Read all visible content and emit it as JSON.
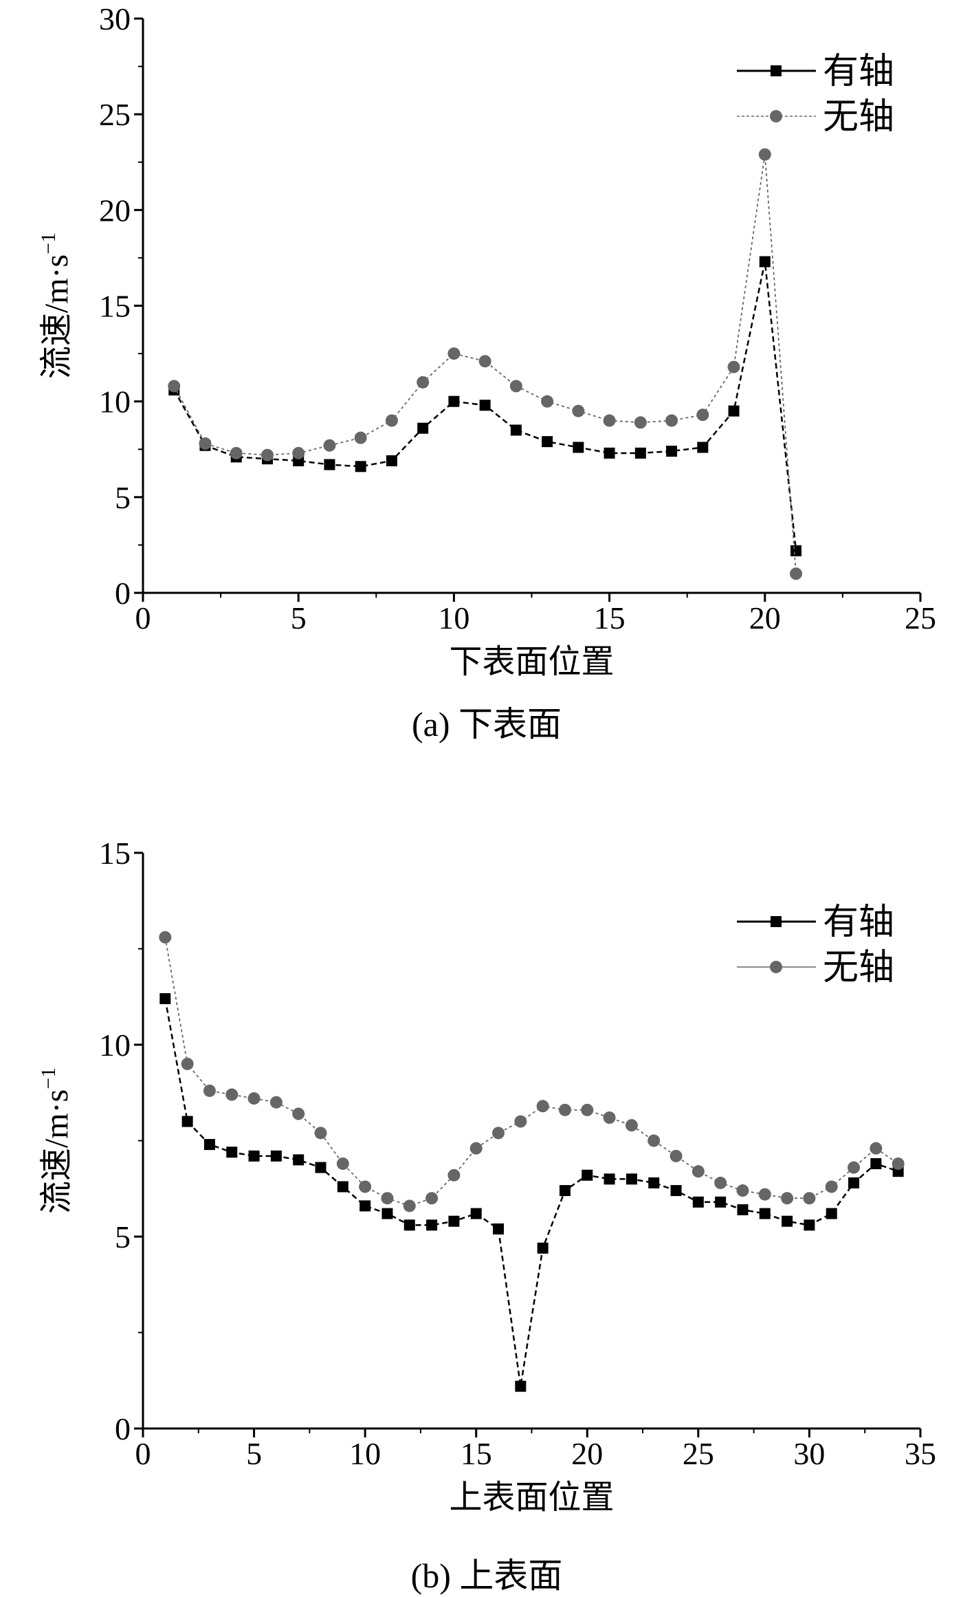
{
  "figure": {
    "caption_a": "(a) 下表面",
    "caption_b": "(b) 上表面"
  },
  "chart_data": [
    {
      "type": "line",
      "title": "",
      "xlabel": "下表面位置",
      "ylabel": "流速/m·s",
      "ylabel_sup": "−1",
      "xlim": [
        0,
        25
      ],
      "ylim": [
        0,
        30
      ],
      "xticks": [
        "0",
        "5",
        "10",
        "15",
        "20",
        "25"
      ],
      "yticks": [
        "0",
        "5",
        "10",
        "15",
        "20",
        "25",
        "30"
      ],
      "legend": [
        "有轴",
        "无轴"
      ],
      "x": [
        1,
        2,
        3,
        4,
        5,
        6,
        7,
        8,
        9,
        10,
        11,
        12,
        13,
        14,
        15,
        16,
        17,
        18,
        19,
        20,
        21
      ],
      "series": [
        {
          "name": "有轴",
          "marker": "square",
          "color": "#000000",
          "values": [
            10.6,
            7.7,
            7.1,
            7.0,
            6.9,
            6.7,
            6.6,
            6.9,
            8.6,
            10.0,
            9.8,
            8.5,
            7.9,
            7.6,
            7.3,
            7.3,
            7.4,
            7.6,
            9.5,
            17.3,
            2.2
          ]
        },
        {
          "name": "无轴",
          "marker": "circle",
          "color": "#666666",
          "values": [
            10.8,
            7.8,
            7.3,
            7.2,
            7.3,
            7.7,
            8.1,
            9.0,
            11.0,
            12.5,
            12.1,
            10.8,
            10.0,
            9.5,
            9.0,
            8.9,
            9.0,
            9.3,
            11.8,
            22.9,
            1.0
          ]
        }
      ]
    },
    {
      "type": "line",
      "title": "",
      "xlabel": "上表面位置",
      "ylabel": "流速/m·s",
      "ylabel_sup": "−1",
      "xlim": [
        0,
        35
      ],
      "ylim": [
        0,
        15
      ],
      "xticks": [
        "0",
        "5",
        "10",
        "15",
        "20",
        "25",
        "30",
        "35"
      ],
      "yticks": [
        "0",
        "5",
        "10",
        "15"
      ],
      "legend": [
        "有轴",
        "无轴"
      ],
      "x": [
        1,
        2,
        3,
        4,
        5,
        6,
        7,
        8,
        9,
        10,
        11,
        12,
        13,
        14,
        15,
        16,
        17,
        18,
        19,
        20,
        21,
        22,
        23,
        24,
        25,
        26,
        27,
        28,
        29,
        30,
        31,
        32,
        33,
        34
      ],
      "series": [
        {
          "name": "有轴",
          "marker": "square",
          "color": "#000000",
          "values": [
            11.2,
            8.0,
            7.4,
            7.2,
            7.1,
            7.1,
            7.0,
            6.8,
            6.3,
            5.8,
            5.6,
            5.3,
            5.3,
            5.4,
            5.6,
            5.2,
            1.1,
            4.7,
            6.2,
            6.6,
            6.5,
            6.5,
            6.4,
            6.2,
            5.9,
            5.9,
            5.7,
            5.6,
            5.4,
            5.3,
            5.6,
            6.4,
            6.9,
            6.7
          ]
        },
        {
          "name": "无轴",
          "marker": "circle",
          "color": "#666666",
          "values": [
            12.8,
            9.5,
            8.8,
            8.7,
            8.6,
            8.5,
            8.2,
            7.7,
            6.9,
            6.3,
            6.0,
            5.8,
            6.0,
            6.6,
            7.3,
            7.7,
            8.0,
            8.4,
            8.3,
            8.3,
            8.1,
            7.9,
            7.5,
            7.1,
            6.7,
            6.4,
            6.2,
            6.1,
            6.0,
            6.0,
            6.3,
            6.8,
            7.3,
            6.9
          ]
        }
      ]
    }
  ]
}
